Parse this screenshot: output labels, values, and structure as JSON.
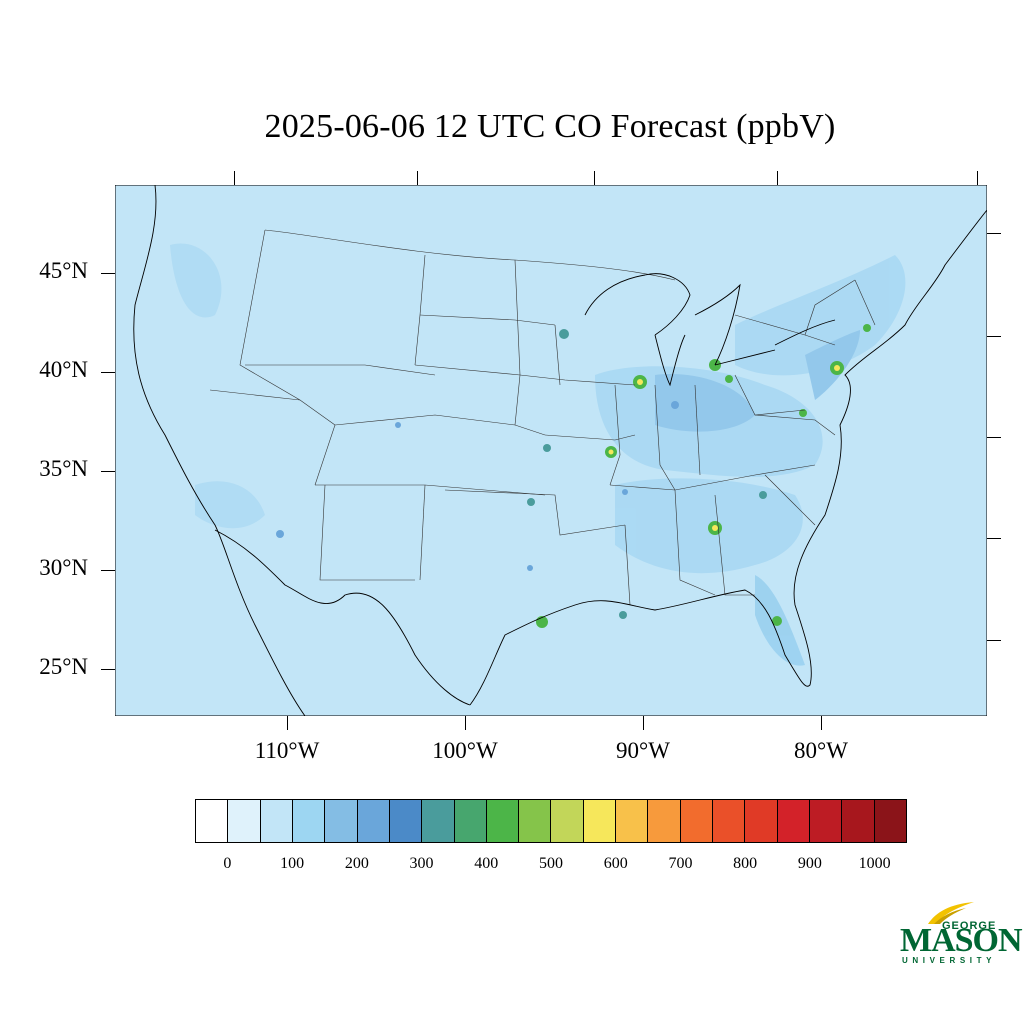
{
  "title": "2025-06-06 12 UTC CO Forecast (ppbV)",
  "map": {
    "latitude_labels": [
      "45°N",
      "40°N",
      "35°N",
      "30°N",
      "25°N"
    ],
    "longitude_labels": [
      "110°W",
      "100°W",
      "90°W",
      "80°W"
    ],
    "background_color": "#c2e5f7",
    "boundary_color": "#000000"
  },
  "colorbar": {
    "colors": [
      "#ffffff",
      "#dff2fb",
      "#c2e5f7",
      "#9dd6f2",
      "#84bde4",
      "#6aa6da",
      "#4b8ac8",
      "#4a9c9c",
      "#47a66e",
      "#4cb548",
      "#85c44a",
      "#c2d659",
      "#f6e75b",
      "#f8c14a",
      "#f79a3c",
      "#f26c2d",
      "#ea5029",
      "#e03a26",
      "#d32229",
      "#bd1c24",
      "#a7171d",
      "#8b1419"
    ],
    "labels": [
      "0",
      "100",
      "200",
      "300",
      "400",
      "500",
      "600",
      "700",
      "800",
      "900",
      "1000"
    ]
  },
  "logo": {
    "line1": "GEORGE",
    "line2": "MASON",
    "line3": "UNIVERSITY",
    "color": "#006633",
    "accent": "#f2c200"
  }
}
